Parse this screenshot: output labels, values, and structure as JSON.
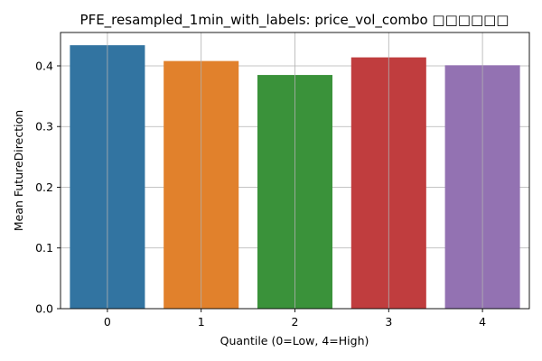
{
  "chart_data": {
    "type": "bar",
    "title": "PFE_resampled_1min_with_labels: price_vol_combo □□□□□□",
    "xlabel": "Quantile (0=Low, 4=High)",
    "ylabel": "Mean FutureDirection",
    "categories": [
      "0",
      "1",
      "2",
      "3",
      "4"
    ],
    "values": [
      0.434,
      0.408,
      0.385,
      0.414,
      0.401
    ],
    "colors": [
      "#3274a1",
      "#e1812c",
      "#3a923a",
      "#c03d3e",
      "#9372b2"
    ],
    "ylim": [
      0,
      0.455
    ],
    "yticks": [
      0.0,
      0.1,
      0.2,
      0.3,
      0.4
    ],
    "ytick_labels": [
      "0.0",
      "0.1",
      "0.2",
      "0.3",
      "0.4"
    ],
    "grid": true,
    "legend": "none"
  }
}
